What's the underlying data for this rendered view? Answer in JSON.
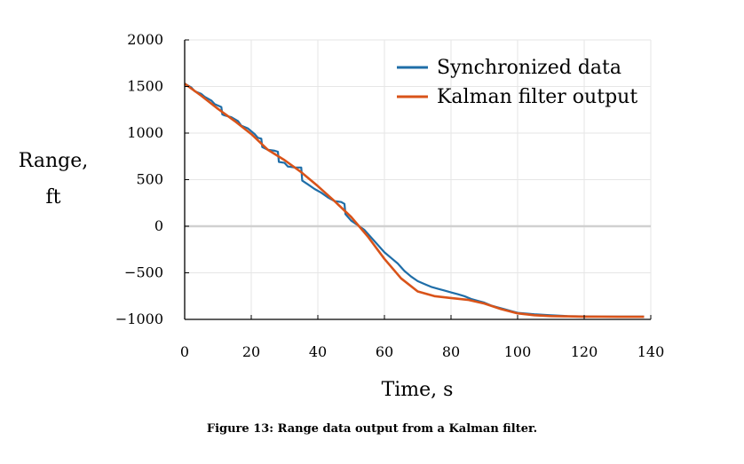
{
  "caption": "Figure 13: Range data output from a Kalman filter.",
  "chart_data": {
    "type": "line",
    "title": "",
    "xlabel": "Time, s",
    "ylabel_line1": "Range,",
    "ylabel_line2": "ft",
    "xlim": [
      0,
      140
    ],
    "ylim": [
      -1000,
      2000
    ],
    "xticks": [
      0,
      20,
      40,
      60,
      80,
      100,
      120,
      140
    ],
    "yticks": [
      -1000,
      -500,
      0,
      500,
      1000,
      1500,
      2000
    ],
    "xtick_labels": [
      "0",
      "20",
      "40",
      "60",
      "80",
      "100",
      "120",
      "140"
    ],
    "ytick_labels": [
      "−1000",
      "−500",
      "0",
      "500",
      "1000",
      "1500",
      "2000"
    ],
    "grid": true,
    "legend_position": "top-right",
    "series": [
      {
        "name": "Synchronized data",
        "color": "#1f6ea8",
        "x": [
          0,
          2,
          3,
          5,
          6,
          8,
          9,
          11,
          11.3,
          12,
          14,
          16,
          17,
          19,
          21,
          22,
          23,
          23.3,
          25,
          27,
          28,
          28.3,
          30,
          31,
          31.3,
          33,
          35,
          35.3,
          37,
          39,
          41,
          43,
          45,
          47,
          48,
          48.3,
          50,
          52,
          54,
          56,
          58,
          60,
          62,
          64,
          65,
          66,
          68,
          70,
          72,
          74,
          76,
          78,
          80,
          82,
          84,
          86,
          88,
          90,
          92,
          94,
          96,
          98,
          100,
          105,
          110,
          115,
          120,
          125,
          130,
          135,
          138
        ],
        "y": [
          1530,
          1490,
          1450,
          1420,
          1390,
          1350,
          1310,
          1280,
          1200,
          1190,
          1170,
          1130,
          1080,
          1050,
          990,
          950,
          940,
          850,
          820,
          810,
          800,
          690,
          680,
          640,
          640,
          630,
          630,
          490,
          450,
          400,
          360,
          310,
          270,
          260,
          240,
          130,
          60,
          10,
          -40,
          -120,
          -200,
          -280,
          -340,
          -400,
          -440,
          -480,
          -540,
          -590,
          -620,
          -650,
          -670,
          -690,
          -710,
          -730,
          -750,
          -780,
          -800,
          -820,
          -850,
          -870,
          -890,
          -910,
          -930,
          -945,
          -955,
          -965,
          -968,
          -970,
          -970,
          -970,
          -970
        ]
      },
      {
        "name": "Kalman filter output",
        "color": "#d95319",
        "x": [
          0,
          5,
          10,
          15,
          20,
          25,
          30,
          35,
          40,
          45,
          50,
          55,
          60,
          65,
          70,
          75,
          80,
          85,
          90,
          95,
          100,
          105,
          110,
          115,
          120,
          125,
          130,
          135,
          138
        ],
        "y": [
          1530,
          1400,
          1260,
          1130,
          990,
          820,
          710,
          580,
          430,
          270,
          100,
          -110,
          -350,
          -560,
          -700,
          -750,
          -770,
          -790,
          -830,
          -890,
          -935,
          -955,
          -965,
          -968,
          -970,
          -970,
          -972,
          -972,
          -972
        ]
      }
    ]
  }
}
